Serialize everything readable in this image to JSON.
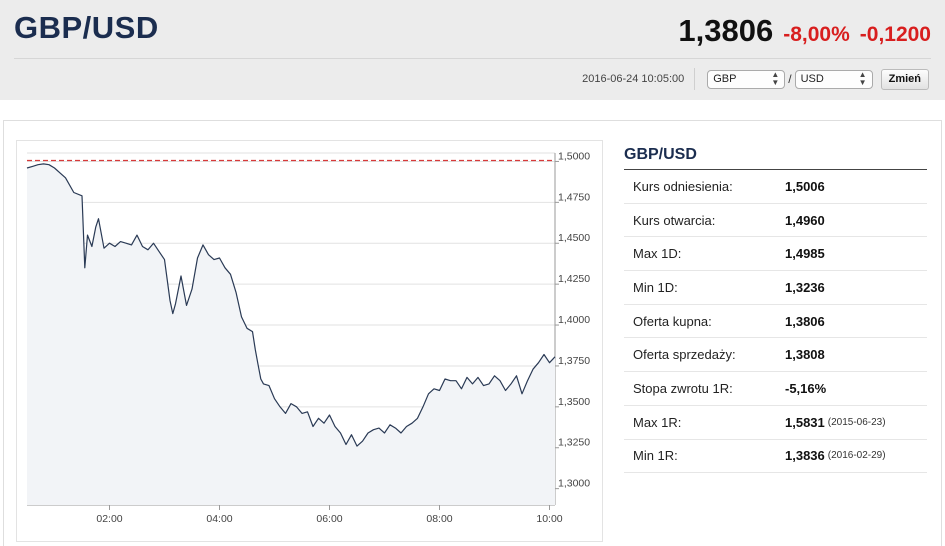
{
  "header": {
    "title": "GBP/USD",
    "last": "1,3806",
    "change_pct": "-8,00%",
    "change_abs": "-0,1200",
    "timestamp": "2016-06-24 10:05:00",
    "base_currency": "GBP",
    "separator": "/",
    "quote_currency": "USD",
    "change_button": "Zmień"
  },
  "colors": {
    "negative": "#d81e1e",
    "title": "#1b2d4f",
    "line": "#2a3a55",
    "reference": "#d83a3a"
  },
  "info": {
    "title": "GBP/USD",
    "rows": [
      {
        "label": "Kurs odniesienia:",
        "value": "1,5006",
        "date": ""
      },
      {
        "label": "Kurs otwarcia:",
        "value": "1,4960",
        "date": ""
      },
      {
        "label": "Max 1D:",
        "value": "1,4985",
        "date": ""
      },
      {
        "label": "Min 1D:",
        "value": "1,3236",
        "date": ""
      },
      {
        "label": "Oferta kupna:",
        "value": "1,3806",
        "date": ""
      },
      {
        "label": "Oferta sprzedaży:",
        "value": "1,3808",
        "date": ""
      },
      {
        "label": "Stopa zwrotu 1R:",
        "value": "-5,16%",
        "date": ""
      },
      {
        "label": "Max 1R:",
        "value": "1,5831",
        "date": "(2015-06-23)"
      },
      {
        "label": "Min 1R:",
        "value": "1,3836",
        "date": "(2016-02-29)"
      }
    ]
  },
  "chart_data": {
    "type": "area",
    "title": "",
    "xlabel": "",
    "ylabel": "",
    "x_unit": "hours",
    "x_ticks": [
      2,
      4,
      6,
      8,
      10
    ],
    "x_tick_labels": [
      "02:00",
      "04:00",
      "06:00",
      "08:00",
      "10:00"
    ],
    "xlim": [
      0.5,
      10.1
    ],
    "y_ticks": [
      1.3,
      1.325,
      1.35,
      1.375,
      1.4,
      1.425,
      1.45,
      1.475,
      1.5
    ],
    "y_tick_labels": [
      "1,3000",
      "1,3250",
      "1,3500",
      "1,3750",
      "1,4000",
      "1,4250",
      "1,4500",
      "1,4750",
      "1,5000"
    ],
    "ylim": [
      1.29,
      1.5125
    ],
    "reference_line": 1.5006,
    "grid": true,
    "series": [
      {
        "x": [
          0.5,
          0.6,
          0.7,
          0.8,
          0.9,
          1.0,
          1.1,
          1.2,
          1.35,
          1.5,
          1.55,
          1.6,
          1.68,
          1.75,
          1.8,
          1.9,
          2.0,
          2.1,
          2.2,
          2.3,
          2.4,
          2.5,
          2.6,
          2.7,
          2.8,
          2.9,
          3.0,
          3.1,
          3.15,
          3.2,
          3.3,
          3.4,
          3.5,
          3.6,
          3.7,
          3.8,
          3.9,
          4.0,
          4.1,
          4.2,
          4.3,
          4.4,
          4.5,
          4.6,
          4.65,
          4.7,
          4.75,
          4.8,
          4.9,
          5.0,
          5.1,
          5.2,
          5.3,
          5.4,
          5.5,
          5.6,
          5.7,
          5.8,
          5.9,
          6.0,
          6.1,
          6.2,
          6.3,
          6.4,
          6.5,
          6.6,
          6.7,
          6.8,
          6.9,
          7.0,
          7.1,
          7.2,
          7.3,
          7.4,
          7.5,
          7.6,
          7.7,
          7.8,
          7.9,
          8.0,
          8.1,
          8.2,
          8.3,
          8.4,
          8.5,
          8.6,
          8.7,
          8.8,
          8.9,
          9.0,
          9.1,
          9.2,
          9.3,
          9.4,
          9.5,
          9.6,
          9.7,
          9.8,
          9.9,
          10.0,
          10.1
        ],
        "values": [
          1.496,
          1.497,
          1.498,
          1.4985,
          1.498,
          1.496,
          1.493,
          1.49,
          1.481,
          1.479,
          1.435,
          1.455,
          1.448,
          1.46,
          1.465,
          1.447,
          1.45,
          1.448,
          1.451,
          1.45,
          1.449,
          1.455,
          1.448,
          1.446,
          1.45,
          1.445,
          1.44,
          1.415,
          1.407,
          1.413,
          1.43,
          1.412,
          1.422,
          1.441,
          1.449,
          1.443,
          1.44,
          1.441,
          1.435,
          1.431,
          1.42,
          1.405,
          1.398,
          1.396,
          1.385,
          1.376,
          1.367,
          1.364,
          1.363,
          1.355,
          1.35,
          1.346,
          1.352,
          1.35,
          1.346,
          1.347,
          1.338,
          1.343,
          1.34,
          1.345,
          1.338,
          1.334,
          1.327,
          1.333,
          1.326,
          1.329,
          1.334,
          1.336,
          1.337,
          1.334,
          1.339,
          1.337,
          1.334,
          1.338,
          1.34,
          1.343,
          1.35,
          1.358,
          1.361,
          1.36,
          1.367,
          1.366,
          1.366,
          1.361,
          1.368,
          1.364,
          1.368,
          1.363,
          1.364,
          1.369,
          1.366,
          1.36,
          1.364,
          1.369,
          1.358,
          1.366,
          1.373,
          1.377,
          1.382,
          1.377,
          1.3806
        ]
      }
    ]
  }
}
